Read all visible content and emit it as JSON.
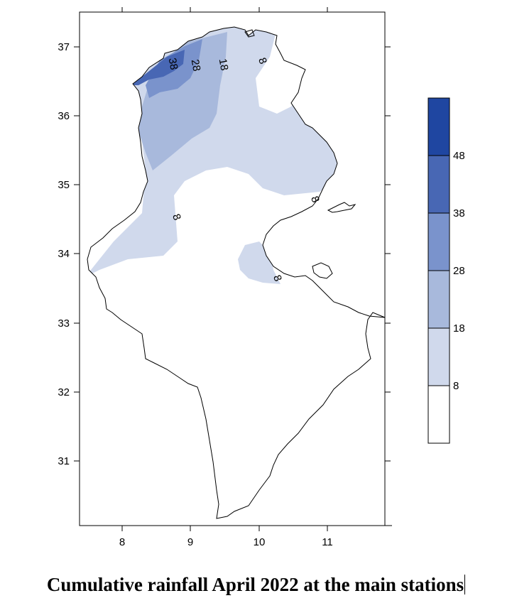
{
  "caption": "Cumulative rainfall April 2022 at the main stations",
  "map": {
    "x_ticks": [
      "8",
      "9",
      "10",
      "11"
    ],
    "y_ticks": [
      "31",
      "32",
      "33",
      "34",
      "35",
      "36",
      "37"
    ],
    "contour_labels": [
      "38",
      "28",
      "18",
      "8",
      "8",
      "8",
      "8"
    ],
    "colors": {
      "band_8_18": "#d0d9ec",
      "band_18_28": "#a8b9dc",
      "band_28_38": "#7a93cc",
      "band_38_48": "#4867b4",
      "band_48_plus": "#1f46a1",
      "below_8": "#ffffff"
    }
  },
  "legend": {
    "labels": [
      "48",
      "38",
      "28",
      "18",
      "8"
    ],
    "colors": [
      "#1f46a1",
      "#4867b4",
      "#7a93cc",
      "#a8b9dc",
      "#d0d9ec",
      "#ffffff"
    ]
  }
}
